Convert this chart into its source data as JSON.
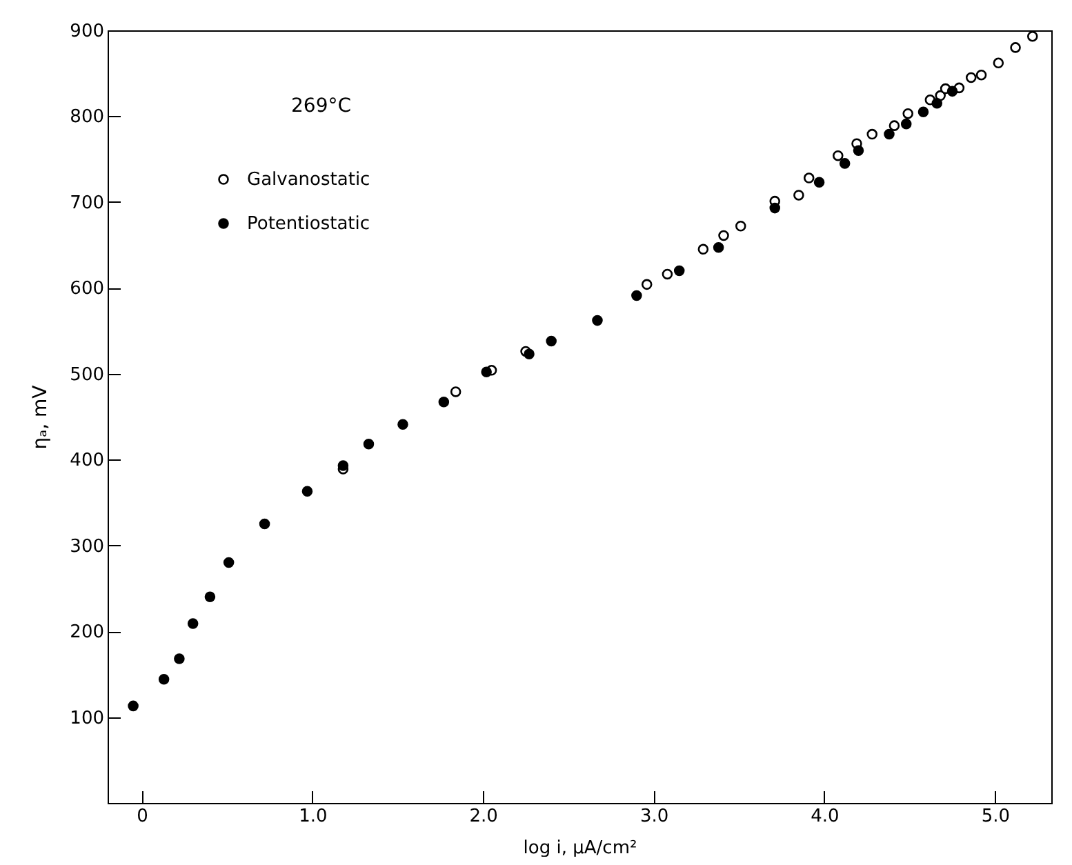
{
  "chart_data": {
    "type": "scatter",
    "xlabel": "log i,  μA/cm²",
    "ylabel": "ηₐ,  mV",
    "annotations": [
      "269°C"
    ],
    "xlim": [
      -0.2,
      5.33
    ],
    "ylim": [
      0,
      900
    ],
    "xticks": [
      0,
      {
        "value": 1,
        "label": "1.0"
      },
      {
        "value": 2,
        "label": "2.0"
      },
      {
        "value": 3,
        "label": "3.0"
      },
      {
        "value": 4,
        "label": "4.0"
      },
      {
        "value": 5,
        "label": "5.0"
      }
    ],
    "yticks": [
      100,
      200,
      300,
      400,
      500,
      600,
      700,
      800,
      900
    ],
    "grid": false,
    "legend": "top left",
    "marker": "circle",
    "series": [
      {
        "name": "Galvanostatic",
        "color": "#ffffff",
        "x": [
          1.18,
          1.84,
          2.05,
          2.25,
          2.96,
          3.08,
          3.29,
          3.41,
          3.51,
          3.71,
          3.85,
          3.91,
          4.08,
          4.19,
          4.28,
          4.41,
          4.49,
          4.62,
          4.68,
          4.71,
          4.79,
          4.86,
          4.92,
          5.02,
          5.12,
          5.22
        ],
        "values": [
          389,
          479,
          504,
          526,
          604,
          616,
          645,
          661,
          672,
          701,
          708,
          728,
          754,
          768,
          779,
          789,
          803,
          819,
          824,
          832,
          833,
          845,
          848,
          862,
          880,
          893
        ]
      },
      {
        "name": "Potentiostatic",
        "color": "#000000",
        "x": [
          -0.05,
          0.13,
          0.22,
          0.3,
          0.4,
          0.51,
          0.72,
          0.97,
          1.18,
          1.33,
          1.53,
          1.77,
          2.02,
          2.27,
          2.4,
          2.67,
          2.9,
          3.15,
          3.38,
          3.71,
          3.97,
          4.12,
          4.2,
          4.38,
          4.48,
          4.58,
          4.66,
          4.75
        ],
        "values": [
          113,
          144,
          168,
          209,
          240,
          280,
          325,
          363,
          393,
          418,
          441,
          467,
          502,
          523,
          538,
          562,
          591,
          620,
          647,
          693,
          723,
          745,
          760,
          779,
          791,
          805,
          815,
          829
        ]
      }
    ]
  }
}
